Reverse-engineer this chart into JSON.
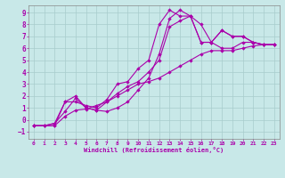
{
  "xlabel": "Windchill (Refroidissement éolien,°C)",
  "bg_color": "#c8e8e8",
  "grid_color": "#a8cccc",
  "line_color": "#aa00aa",
  "markersize": 2.2,
  "lw": 0.8,
  "xlim": [
    -0.5,
    23.5
  ],
  "ylim": [
    -1.6,
    9.6
  ],
  "xticks": [
    0,
    1,
    2,
    3,
    4,
    5,
    6,
    7,
    8,
    9,
    10,
    11,
    12,
    13,
    14,
    15,
    16,
    17,
    18,
    19,
    20,
    21,
    22,
    23
  ],
  "yticks": [
    -1,
    0,
    1,
    2,
    3,
    4,
    5,
    6,
    7,
    8,
    9
  ],
  "line1_x": [
    0,
    1,
    2,
    3,
    4,
    5,
    6,
    7,
    8,
    9,
    10,
    11,
    12,
    13,
    14,
    15,
    16,
    17,
    18,
    19,
    20,
    21,
    22,
    23
  ],
  "line1_y": [
    -0.5,
    -0.5,
    -0.3,
    1.5,
    1.5,
    1.2,
    1.0,
    1.7,
    3.0,
    3.2,
    4.3,
    5.0,
    8.0,
    9.2,
    8.7,
    8.7,
    8.0,
    6.5,
    7.5,
    7.0,
    7.0,
    6.5,
    6.3,
    6.3
  ],
  "line2_x": [
    0,
    1,
    2,
    3,
    4,
    5,
    6,
    7,
    8,
    9,
    10,
    11,
    12,
    13,
    14,
    15,
    16,
    17,
    18,
    19,
    20,
    21,
    22,
    23
  ],
  "line2_y": [
    -0.5,
    -0.5,
    -0.3,
    0.7,
    1.8,
    1.0,
    0.8,
    1.5,
    2.2,
    2.8,
    3.2,
    4.0,
    5.0,
    7.8,
    8.3,
    8.7,
    6.5,
    6.5,
    6.0,
    6.0,
    6.5,
    6.5,
    6.3,
    6.3
  ],
  "line3_x": [
    0,
    1,
    2,
    3,
    4,
    5,
    6,
    7,
    8,
    9,
    10,
    11,
    12,
    13,
    14,
    15,
    16,
    17,
    18,
    19,
    20,
    21,
    22,
    23
  ],
  "line3_y": [
    -0.5,
    -0.5,
    -0.5,
    0.3,
    0.8,
    0.9,
    1.2,
    1.5,
    2.0,
    2.5,
    3.0,
    3.2,
    3.5,
    4.0,
    4.5,
    5.0,
    5.5,
    5.8,
    5.8,
    5.8,
    6.0,
    6.2,
    6.3,
    6.3
  ],
  "line4_x": [
    0,
    2,
    3,
    4,
    5,
    6,
    7,
    8,
    9,
    10,
    11,
    12,
    13,
    14,
    15,
    16,
    17,
    18,
    19,
    20,
    21,
    22,
    23
  ],
  "line4_y": [
    -0.5,
    -0.5,
    1.5,
    2.0,
    1.0,
    0.8,
    0.7,
    1.0,
    1.5,
    2.5,
    3.5,
    5.5,
    8.5,
    9.2,
    8.7,
    6.5,
    6.5,
    7.5,
    7.0,
    7.0,
    6.5,
    6.3,
    6.3
  ]
}
